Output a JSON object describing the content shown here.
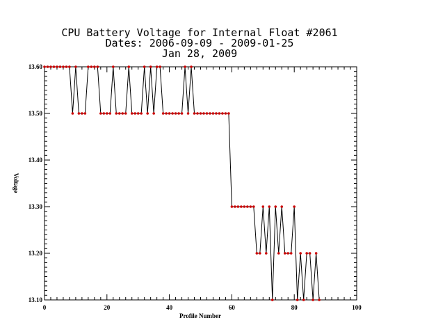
{
  "chart_data": {
    "type": "line",
    "title_lines": [
      "CPU Battery Voltage for Internal Float #2061",
      "Dates:  2006-09-09 -  2009-01-25",
      "Jan 28, 2009"
    ],
    "xlabel": "Profile Number",
    "ylabel": "Voltage",
    "xlim": [
      0,
      100
    ],
    "ylim": [
      13.1,
      13.6
    ],
    "xticks": [
      0,
      20,
      40,
      60,
      80,
      100
    ],
    "xtick_labels": [
      "0",
      "20",
      "40",
      "60",
      "80",
      "100"
    ],
    "yticks": [
      13.1,
      13.2,
      13.3,
      13.4,
      13.5,
      13.6
    ],
    "ytick_labels": [
      "13.10",
      "13.20",
      "13.30",
      "13.40",
      "13.50",
      "13.60"
    ],
    "line_color": "#000000",
    "marker_color": "#cc0000",
    "series": [
      {
        "x": [
          0,
          1,
          2,
          3,
          4,
          5,
          6,
          7,
          8,
          9,
          10,
          11,
          12,
          13,
          14,
          15,
          16,
          17,
          18,
          19,
          20,
          21,
          22,
          23,
          24,
          25,
          26,
          27,
          28,
          29,
          30,
          31,
          32,
          33,
          34,
          35,
          36,
          37,
          38,
          39,
          40,
          41,
          42,
          43,
          44,
          45,
          46,
          47,
          48,
          49,
          50,
          51,
          52,
          53,
          54,
          55,
          56,
          57,
          58,
          59,
          60,
          61,
          62,
          63,
          64,
          65,
          66,
          67,
          68,
          69,
          70,
          71,
          72,
          73,
          74,
          75,
          76,
          77,
          78,
          79,
          80,
          81,
          82,
          83,
          84,
          85,
          86,
          87,
          88
        ],
        "y": [
          13.6,
          13.6,
          13.6,
          13.6,
          13.6,
          13.6,
          13.6,
          13.6,
          13.6,
          13.5,
          13.6,
          13.5,
          13.5,
          13.5,
          13.6,
          13.6,
          13.6,
          13.6,
          13.5,
          13.5,
          13.5,
          13.5,
          13.6,
          13.5,
          13.5,
          13.5,
          13.5,
          13.6,
          13.5,
          13.5,
          13.5,
          13.5,
          13.6,
          13.5,
          13.6,
          13.5,
          13.6,
          13.6,
          13.5,
          13.5,
          13.5,
          13.5,
          13.5,
          13.5,
          13.5,
          13.6,
          13.5,
          13.6,
          13.5,
          13.5,
          13.5,
          13.5,
          13.5,
          13.5,
          13.5,
          13.5,
          13.5,
          13.5,
          13.5,
          13.5,
          13.3,
          13.3,
          13.3,
          13.3,
          13.3,
          13.3,
          13.3,
          13.3,
          13.2,
          13.2,
          13.3,
          13.2,
          13.3,
          13.1,
          13.3,
          13.2,
          13.3,
          13.2,
          13.2,
          13.2,
          13.3,
          13.1,
          13.2,
          13.1,
          13.2,
          13.2,
          13.1,
          13.2,
          13.1
        ]
      }
    ]
  }
}
